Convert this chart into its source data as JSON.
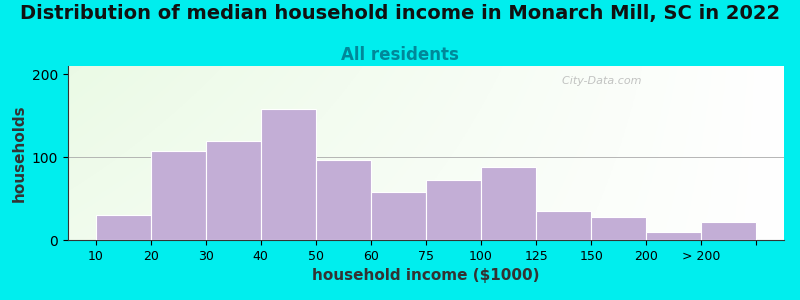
{
  "title": "Distribution of median household income in Monarch Mill, SC in 2022",
  "subtitle": "All residents",
  "xlabel": "household income ($1000)",
  "ylabel": "households",
  "title_fontsize": 14,
  "subtitle_fontsize": 12,
  "label_fontsize": 11,
  "background_outer": "#00EEEE",
  "bar_color": "#C3AED6",
  "bar_edge_color": "#FFFFFF",
  "tick_labels": [
    "10",
    "20",
    "30",
    "40",
    "50",
    "60",
    "75",
    "100",
    "125",
    "150",
    "200",
    "> 200"
  ],
  "bar_lefts": [
    0,
    1,
    2,
    3,
    4,
    5,
    6,
    7,
    8,
    9,
    10,
    11
  ],
  "values": [
    30,
    108,
    120,
    158,
    97,
    58,
    73,
    88,
    35,
    28,
    10,
    22
  ],
  "ylim": [
    0,
    210
  ],
  "yticks": [
    0,
    100,
    200
  ],
  "watermark": "  City-Data.com"
}
